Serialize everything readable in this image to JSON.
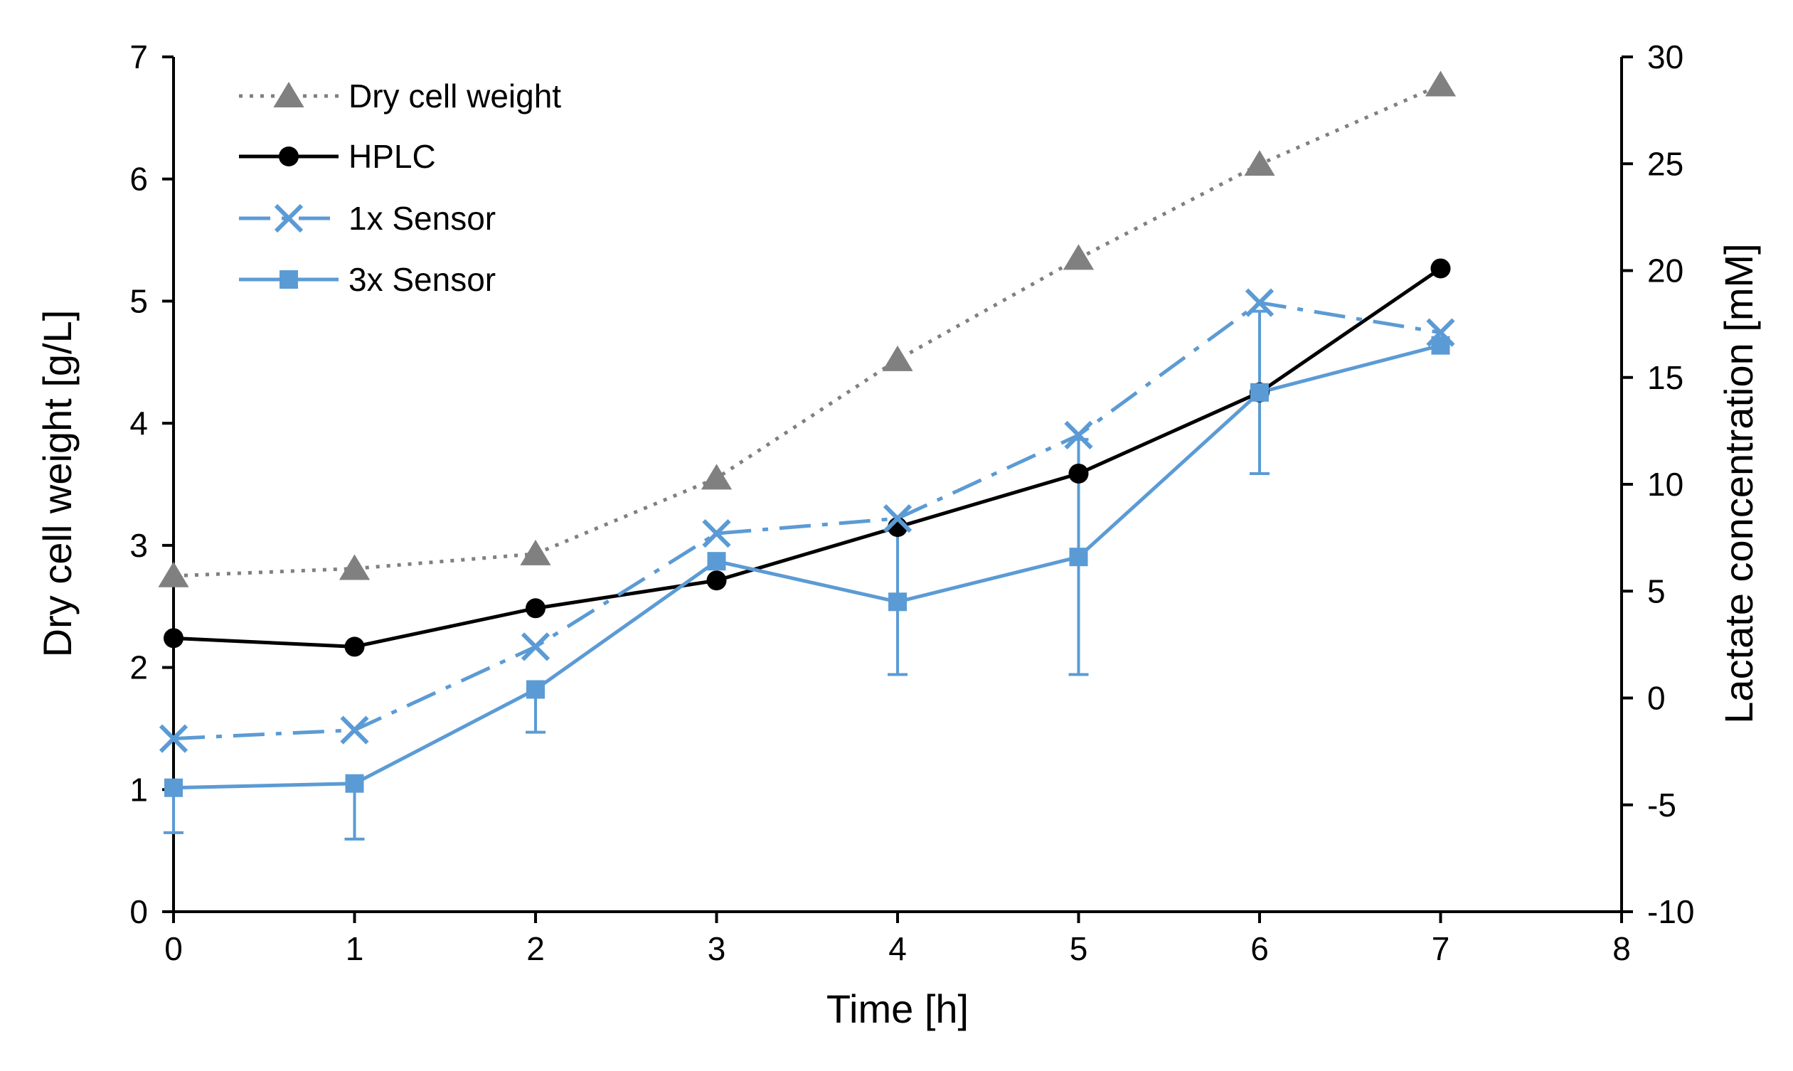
{
  "chart_data": {
    "type": "line",
    "title": "",
    "xlabel": "Time [h]",
    "ylabel_left": "Dry cell weight [g/L]",
    "ylabel_right": "Lactate concentration [mM]",
    "xlim": [
      0,
      8
    ],
    "ylim_left": [
      0,
      7
    ],
    "ylim_right": [
      -10,
      30
    ],
    "x_ticks": [
      "0",
      "1",
      "2",
      "3",
      "4",
      "5",
      "6",
      "7",
      "8"
    ],
    "y_left_ticks": [
      "0",
      "1",
      "2",
      "3",
      "4",
      "5",
      "6",
      "7"
    ],
    "y_right_ticks": [
      "-10",
      "-5",
      "0",
      "5",
      "10",
      "15",
      "20",
      "25",
      "30"
    ],
    "grid": false,
    "legend_position": "top-left",
    "series": [
      {
        "name": "Dry cell weight",
        "axis": "left",
        "color": "#808080",
        "line_style": "dotted",
        "marker": "triangle",
        "x": [
          0,
          1,
          2,
          3,
          4,
          5,
          6,
          7
        ],
        "values": [
          2.75,
          2.81,
          2.93,
          3.55,
          4.52,
          5.35,
          6.12,
          6.77
        ]
      },
      {
        "name": "HPLC",
        "axis": "right",
        "color": "#000000",
        "line_style": "solid",
        "marker": "circle",
        "x": [
          0,
          1,
          2,
          3,
          4,
          5,
          6,
          7
        ],
        "values": [
          2.8,
          2.4,
          4.2,
          5.5,
          8.0,
          10.5,
          14.3,
          20.1
        ]
      },
      {
        "name": "1x Sensor",
        "axis": "right",
        "color": "#5b9bd5",
        "line_style": "dashdot",
        "marker": "x",
        "x": [
          0,
          1,
          2,
          3,
          4,
          5,
          6,
          7
        ],
        "values": [
          -1.9,
          -1.5,
          2.4,
          7.7,
          8.4,
          12.3,
          18.5,
          17.1
        ]
      },
      {
        "name": "3x Sensor",
        "axis": "right",
        "color": "#5b9bd5",
        "line_style": "solid",
        "marker": "square",
        "x": [
          0,
          1,
          2,
          3,
          4,
          5,
          6,
          7
        ],
        "values": [
          -4.2,
          -4.0,
          0.4,
          6.4,
          4.5,
          6.6,
          14.3,
          16.5
        ],
        "error_low": [
          2.1,
          2.6,
          2.0,
          0,
          3.4,
          5.5,
          3.8,
          0
        ],
        "error_high": [
          0,
          0,
          0,
          0,
          3.4,
          5.5,
          3.8,
          0
        ]
      }
    ]
  }
}
